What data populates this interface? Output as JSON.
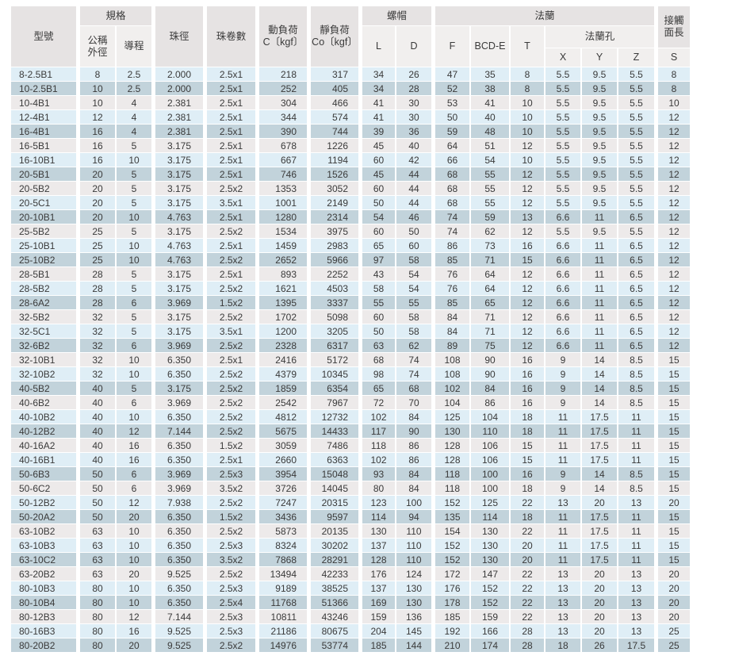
{
  "table": {
    "headers": {
      "model": "型號",
      "spec_group": "規格",
      "nominal_od": "公稱\n外徑",
      "lead": "導程",
      "ball_diameter": "珠徑",
      "ball_circuits": "珠卷數",
      "dynamic_load": "動負荷\nC〔kgf〕",
      "static_load": "靜負荷\nCo〔kgf〕",
      "nut_group": "螺帽",
      "nut_l": "L",
      "nut_d": "D",
      "flange_group": "法蘭",
      "flange_f": "F",
      "flange_bcd": "BCD-E",
      "flange_t": "T",
      "flange_holes_group": "法蘭孔",
      "hole_x": "X",
      "hole_y": "Y",
      "hole_z": "Z",
      "contact_length": "接觸\n面長",
      "contact_s": "S"
    },
    "rows": [
      [
        "8-2.5B1",
        "8",
        "2.5",
        "2.000",
        "2.5x1",
        "218",
        "317",
        "34",
        "26",
        "47",
        "35",
        "8",
        "5.5",
        "9.5",
        "5.5",
        "8"
      ],
      [
        "10-2.5B1",
        "10",
        "2.5",
        "2.000",
        "2.5x1",
        "252",
        "405",
        "34",
        "28",
        "52",
        "38",
        "8",
        "5.5",
        "9.5",
        "5.5",
        "8"
      ],
      [
        "10-4B1",
        "10",
        "4",
        "2.381",
        "2.5x1",
        "304",
        "466",
        "41",
        "30",
        "53",
        "41",
        "10",
        "5.5",
        "9.5",
        "5.5",
        "10"
      ],
      [
        "12-4B1",
        "12",
        "4",
        "2.381",
        "2.5x1",
        "344",
        "574",
        "41",
        "30",
        "50",
        "40",
        "10",
        "5.5",
        "9.5",
        "5.5",
        "12"
      ],
      [
        "16-4B1",
        "16",
        "4",
        "2.381",
        "2.5x1",
        "390",
        "744",
        "39",
        "36",
        "59",
        "48",
        "10",
        "5.5",
        "9.5",
        "5.5",
        "12"
      ],
      [
        "16-5B1",
        "16",
        "5",
        "3.175",
        "2.5x1",
        "678",
        "1226",
        "45",
        "40",
        "64",
        "51",
        "12",
        "5.5",
        "9.5",
        "5.5",
        "12"
      ],
      [
        "16-10B1",
        "16",
        "10",
        "3.175",
        "2.5x1",
        "667",
        "1194",
        "60",
        "42",
        "66",
        "54",
        "10",
        "5.5",
        "9.5",
        "5.5",
        "12"
      ],
      [
        "20-5B1",
        "20",
        "5",
        "3.175",
        "2.5x1",
        "746",
        "1526",
        "45",
        "44",
        "68",
        "55",
        "12",
        "5.5",
        "9.5",
        "5.5",
        "12"
      ],
      [
        "20-5B2",
        "20",
        "5",
        "3.175",
        "2.5x2",
        "1353",
        "3052",
        "60",
        "44",
        "68",
        "55",
        "12",
        "5.5",
        "9.5",
        "5.5",
        "12"
      ],
      [
        "20-5C1",
        "20",
        "5",
        "3.175",
        "3.5x1",
        "1001",
        "2149",
        "50",
        "44",
        "68",
        "55",
        "12",
        "5.5",
        "9.5",
        "5.5",
        "12"
      ],
      [
        "20-10B1",
        "20",
        "10",
        "4.763",
        "2.5x1",
        "1280",
        "2314",
        "54",
        "46",
        "74",
        "59",
        "13",
        "6.6",
        "11",
        "6.5",
        "12"
      ],
      [
        "25-5B2",
        "25",
        "5",
        "3.175",
        "2.5x2",
        "1534",
        "3975",
        "60",
        "50",
        "74",
        "62",
        "12",
        "5.5",
        "9.5",
        "5.5",
        "12"
      ],
      [
        "25-10B1",
        "25",
        "10",
        "4.763",
        "2.5x1",
        "1459",
        "2983",
        "65",
        "60",
        "86",
        "73",
        "16",
        "6.6",
        "11",
        "6.5",
        "12"
      ],
      [
        "25-10B2",
        "25",
        "10",
        "4.763",
        "2.5x2",
        "2652",
        "5966",
        "97",
        "58",
        "85",
        "71",
        "15",
        "6.6",
        "11",
        "6.5",
        "12"
      ],
      [
        "28-5B1",
        "28",
        "5",
        "3.175",
        "2.5x1",
        "893",
        "2252",
        "43",
        "54",
        "76",
        "64",
        "12",
        "6.6",
        "11",
        "6.5",
        "12"
      ],
      [
        "28-5B2",
        "28",
        "5",
        "3.175",
        "2.5x2",
        "1621",
        "4503",
        "58",
        "54",
        "76",
        "64",
        "12",
        "6.6",
        "11",
        "6.5",
        "12"
      ],
      [
        "28-6A2",
        "28",
        "6",
        "3.969",
        "1.5x2",
        "1395",
        "3337",
        "55",
        "55",
        "85",
        "65",
        "12",
        "6.6",
        "11",
        "6.5",
        "12"
      ],
      [
        "32-5B2",
        "32",
        "5",
        "3.175",
        "2.5x2",
        "1702",
        "5098",
        "60",
        "58",
        "84",
        "71",
        "12",
        "6.6",
        "11",
        "6.5",
        "12"
      ],
      [
        "32-5C1",
        "32",
        "5",
        "3.175",
        "3.5x1",
        "1200",
        "3205",
        "50",
        "58",
        "84",
        "71",
        "12",
        "6.6",
        "11",
        "6.5",
        "12"
      ],
      [
        "32-6B2",
        "32",
        "6",
        "3.969",
        "2.5x2",
        "2328",
        "6317",
        "63",
        "62",
        "89",
        "75",
        "12",
        "6.6",
        "11",
        "6.5",
        "12"
      ],
      [
        "32-10B1",
        "32",
        "10",
        "6.350",
        "2.5x1",
        "2416",
        "5172",
        "68",
        "74",
        "108",
        "90",
        "16",
        "9",
        "14",
        "8.5",
        "15"
      ],
      [
        "32-10B2",
        "32",
        "10",
        "6.350",
        "2.5x2",
        "4379",
        "10345",
        "98",
        "74",
        "108",
        "90",
        "16",
        "9",
        "14",
        "8.5",
        "15"
      ],
      [
        "40-5B2",
        "40",
        "5",
        "3.175",
        "2.5x2",
        "1859",
        "6354",
        "65",
        "68",
        "102",
        "84",
        "16",
        "9",
        "14",
        "8.5",
        "15"
      ],
      [
        "40-6B2",
        "40",
        "6",
        "3.969",
        "2.5x2",
        "2542",
        "7967",
        "72",
        "70",
        "104",
        "86",
        "16",
        "9",
        "14",
        "8.5",
        "15"
      ],
      [
        "40-10B2",
        "40",
        "10",
        "6.350",
        "2.5x2",
        "4812",
        "12732",
        "102",
        "84",
        "125",
        "104",
        "18",
        "11",
        "17.5",
        "11",
        "15"
      ],
      [
        "40-12B2",
        "40",
        "12",
        "7.144",
        "2.5x2",
        "5675",
        "14433",
        "117",
        "90",
        "130",
        "110",
        "18",
        "11",
        "17.5",
        "11",
        "15"
      ],
      [
        "40-16A2",
        "40",
        "16",
        "6.350",
        "1.5x2",
        "3059",
        "7486",
        "118",
        "86",
        "128",
        "106",
        "15",
        "11",
        "17.5",
        "11",
        "15"
      ],
      [
        "40-16B1",
        "40",
        "16",
        "6.350",
        "2.5x1",
        "2660",
        "6363",
        "102",
        "86",
        "128",
        "106",
        "15",
        "11",
        "17.5",
        "11",
        "15"
      ],
      [
        "50-6B3",
        "50",
        "6",
        "3.969",
        "2.5x3",
        "3954",
        "15048",
        "93",
        "84",
        "118",
        "100",
        "16",
        "9",
        "14",
        "8.5",
        "15"
      ],
      [
        "50-6C2",
        "50",
        "6",
        "3.969",
        "3.5x2",
        "3726",
        "14045",
        "80",
        "84",
        "118",
        "100",
        "18",
        "9",
        "14",
        "8.5",
        "15"
      ],
      [
        "50-12B2",
        "50",
        "12",
        "7.938",
        "2.5x2",
        "7247",
        "20315",
        "123",
        "100",
        "152",
        "125",
        "22",
        "13",
        "20",
        "13",
        "20"
      ],
      [
        "50-20A2",
        "50",
        "20",
        "6.350",
        "1.5x2",
        "3436",
        "9597",
        "114",
        "94",
        "135",
        "114",
        "18",
        "11",
        "17.5",
        "11",
        "15"
      ],
      [
        "63-10B2",
        "63",
        "10",
        "6.350",
        "2.5x2",
        "5873",
        "20135",
        "130",
        "110",
        "154",
        "130",
        "22",
        "11",
        "17.5",
        "11",
        "15"
      ],
      [
        "63-10B3",
        "63",
        "10",
        "6.350",
        "2.5x3",
        "8324",
        "30202",
        "137",
        "110",
        "152",
        "130",
        "20",
        "11",
        "17.5",
        "11",
        "15"
      ],
      [
        "63-10C2",
        "63",
        "10",
        "6.350",
        "3.5x2",
        "7868",
        "28291",
        "128",
        "110",
        "152",
        "130",
        "20",
        "11",
        "17.5",
        "11",
        "15"
      ],
      [
        "63-20B2",
        "63",
        "20",
        "9.525",
        "2.5x2",
        "13494",
        "42233",
        "176",
        "124",
        "172",
        "147",
        "22",
        "13",
        "20",
        "13",
        "20"
      ],
      [
        "80-10B3",
        "80",
        "10",
        "6.350",
        "2.5x3",
        "9189",
        "38525",
        "137",
        "130",
        "176",
        "152",
        "22",
        "13",
        "20",
        "13",
        "20"
      ],
      [
        "80-10B4",
        "80",
        "10",
        "6.350",
        "2.5x4",
        "11768",
        "51366",
        "169",
        "130",
        "178",
        "152",
        "22",
        "13",
        "20",
        "13",
        "20"
      ],
      [
        "80-12B3",
        "80",
        "12",
        "7.144",
        "2.5x3",
        "10811",
        "43246",
        "159",
        "136",
        "185",
        "159",
        "22",
        "13",
        "20",
        "13",
        "20"
      ],
      [
        "80-16B3",
        "80",
        "16",
        "9.525",
        "2.5x3",
        "21186",
        "80675",
        "204",
        "145",
        "192",
        "166",
        "28",
        "13",
        "20",
        "13",
        "25"
      ],
      [
        "80-20B2",
        "80",
        "20",
        "9.525",
        "2.5x2",
        "14976",
        "53774",
        "185",
        "144",
        "210",
        "174",
        "28",
        "18",
        "26",
        "17.5",
        "25"
      ]
    ]
  }
}
